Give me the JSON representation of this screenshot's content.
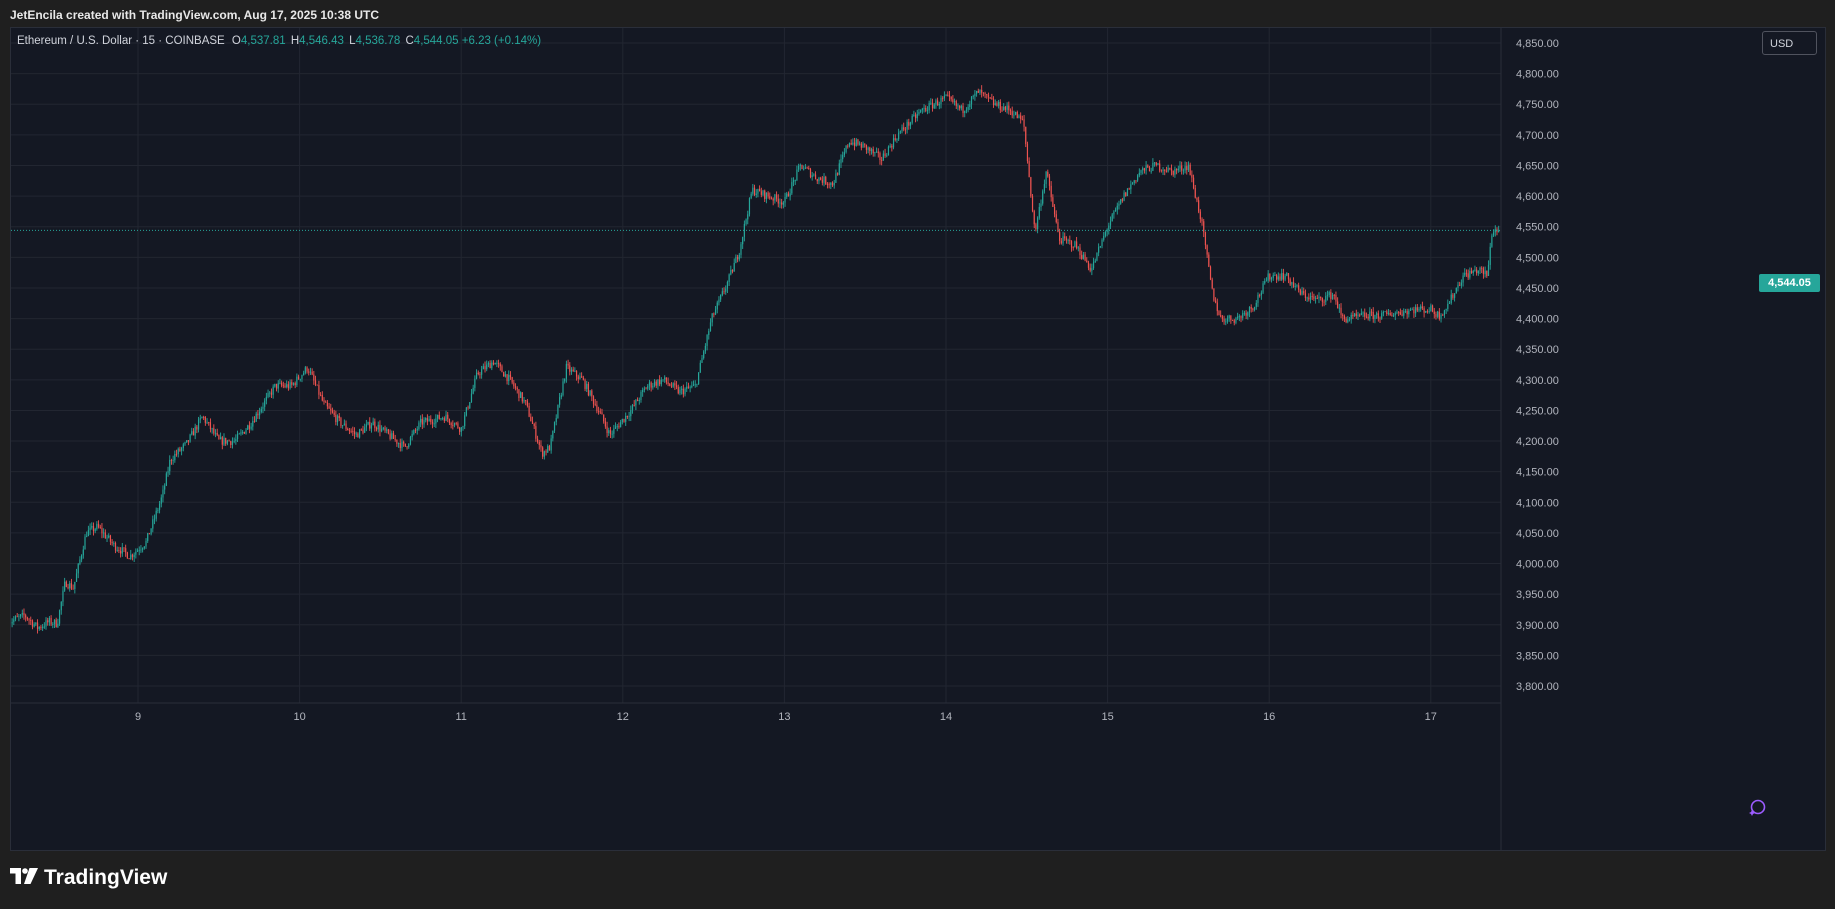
{
  "header": {
    "attribution": "JetEncila created with TradingView.com, Aug 17, 2025 10:38 UTC"
  },
  "legend": {
    "symbol": "Ethereum / U.S. Dollar · 15 · COINBASE",
    "o_label": "O",
    "o_value": "4,537.81",
    "h_label": "H",
    "h_value": "4,546.43",
    "l_label": "L",
    "l_value": "4,536.78",
    "c_label": "C",
    "c_value": "4,544.05",
    "change": "+6.23 (+0.14%)"
  },
  "currency_button": "USD",
  "last_price_label": "4,544.05",
  "brand": {
    "name": "TradingView"
  },
  "icons": {
    "logo": "tradingview-logo-icon",
    "alert": "sparkle-alert-icon"
  },
  "colors": {
    "up": "#26a69a",
    "down": "#ef5350",
    "background": "#141823",
    "grid": "#222631",
    "axis_text": "#b2b5be",
    "last_price": "#26a69a"
  },
  "chart_data": {
    "type": "candlestick",
    "title": "Ethereum / U.S. Dollar · 15 · COINBASE",
    "timeframe": "15",
    "exchange": "COINBASE",
    "xlabel": "",
    "ylabel": "",
    "ylim": [
      3800,
      4850
    ],
    "y_ticks": [
      "3,800.00",
      "3,850.00",
      "3,900.00",
      "3,950.00",
      "4,000.00",
      "4,050.00",
      "4,100.00",
      "4,150.00",
      "4,200.00",
      "4,250.00",
      "4,300.00",
      "4,350.00",
      "4,400.00",
      "4,450.00",
      "4,500.00",
      "4,550.00",
      "4,600.00",
      "4,650.00",
      "4,700.00",
      "4,750.00",
      "4,800.00",
      "4,850.00"
    ],
    "y_tick_values": [
      3800,
      3850,
      3900,
      3950,
      4000,
      4050,
      4100,
      4150,
      4200,
      4250,
      4300,
      4350,
      4400,
      4450,
      4500,
      4550,
      4600,
      4650,
      4700,
      4750,
      4800,
      4850
    ],
    "x_ticks": [
      "9",
      "10",
      "11",
      "12",
      "13",
      "14",
      "15",
      "16",
      "17"
    ],
    "x_tick_days": [
      9,
      10,
      11,
      12,
      13,
      14,
      15,
      16,
      17
    ],
    "x_range_days": [
      8.2,
      17.42
    ],
    "grid": true,
    "last_price": 4544.05,
    "price_path": [
      [
        8.2,
        3905
      ],
      [
        8.3,
        3915
      ],
      [
        8.38,
        3895
      ],
      [
        8.45,
        3905
      ],
      [
        8.5,
        3902
      ],
      [
        8.55,
        3970
      ],
      [
        8.6,
        3960
      ],
      [
        8.68,
        4050
      ],
      [
        8.75,
        4060
      ],
      [
        8.85,
        4030
      ],
      [
        8.95,
        4012
      ],
      [
        9.05,
        4035
      ],
      [
        9.15,
        4110
      ],
      [
        9.2,
        4170
      ],
      [
        9.3,
        4195
      ],
      [
        9.4,
        4240
      ],
      [
        9.5,
        4200
      ],
      [
        9.6,
        4200
      ],
      [
        9.7,
        4230
      ],
      [
        9.85,
        4290
      ],
      [
        9.95,
        4290
      ],
      [
        10.05,
        4320
      ],
      [
        10.15,
        4260
      ],
      [
        10.25,
        4230
      ],
      [
        10.35,
        4210
      ],
      [
        10.45,
        4230
      ],
      [
        10.55,
        4210
      ],
      [
        10.65,
        4190
      ],
      [
        10.75,
        4230
      ],
      [
        10.9,
        4240
      ],
      [
        11.0,
        4220
      ],
      [
        11.1,
        4310
      ],
      [
        11.2,
        4330
      ],
      [
        11.3,
        4300
      ],
      [
        11.4,
        4260
      ],
      [
        11.5,
        4180
      ],
      [
        11.55,
        4190
      ],
      [
        11.65,
        4320
      ],
      [
        11.75,
        4300
      ],
      [
        11.85,
        4250
      ],
      [
        11.92,
        4210
      ],
      [
        12.05,
        4250
      ],
      [
        12.15,
        4290
      ],
      [
        12.25,
        4300
      ],
      [
        12.35,
        4280
      ],
      [
        12.45,
        4290
      ],
      [
        12.55,
        4400
      ],
      [
        12.65,
        4460
      ],
      [
        12.72,
        4510
      ],
      [
        12.8,
        4610
      ],
      [
        12.9,
        4600
      ],
      [
        13.0,
        4590
      ],
      [
        13.1,
        4650
      ],
      [
        13.2,
        4630
      ],
      [
        13.3,
        4620
      ],
      [
        13.4,
        4690
      ],
      [
        13.5,
        4680
      ],
      [
        13.6,
        4660
      ],
      [
        13.7,
        4700
      ],
      [
        13.85,
        4740
      ],
      [
        14.0,
        4760
      ],
      [
        14.1,
        4740
      ],
      [
        14.2,
        4770
      ],
      [
        14.3,
        4750
      ],
      [
        14.4,
        4740
      ],
      [
        14.48,
        4720
      ],
      [
        14.55,
        4540
      ],
      [
        14.62,
        4640
      ],
      [
        14.7,
        4530
      ],
      [
        14.8,
        4520
      ],
      [
        14.9,
        4480
      ],
      [
        15.0,
        4550
      ],
      [
        15.1,
        4600
      ],
      [
        15.2,
        4640
      ],
      [
        15.3,
        4650
      ],
      [
        15.4,
        4640
      ],
      [
        15.5,
        4650
      ],
      [
        15.58,
        4560
      ],
      [
        15.65,
        4440
      ],
      [
        15.7,
        4400
      ],
      [
        15.8,
        4400
      ],
      [
        15.9,
        4420
      ],
      [
        16.0,
        4470
      ],
      [
        16.1,
        4470
      ],
      [
        16.2,
        4440
      ],
      [
        16.3,
        4430
      ],
      [
        16.4,
        4440
      ],
      [
        16.45,
        4400
      ],
      [
        16.5,
        4400
      ],
      [
        16.6,
        4405
      ],
      [
        16.7,
        4405
      ],
      [
        16.8,
        4410
      ],
      [
        16.9,
        4415
      ],
      [
        17.0,
        4415
      ],
      [
        17.05,
        4405
      ],
      [
        17.1,
        4420
      ],
      [
        17.2,
        4470
      ],
      [
        17.3,
        4480
      ],
      [
        17.35,
        4470
      ],
      [
        17.38,
        4545
      ],
      [
        17.42,
        4544
      ]
    ],
    "candle_count": 880
  }
}
